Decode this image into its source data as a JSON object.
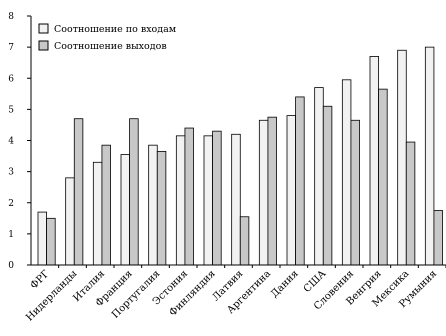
{
  "chart_data": {
    "type": "bar",
    "categories": [
      "ФРГ",
      "Нидерланды",
      "Италия",
      "Франция",
      "Португалия",
      "Эстония",
      "Финляндия",
      "Латвия",
      "Аргентина",
      "Дания",
      "США",
      "Словения",
      "Венгрия",
      "Мексика",
      "Румыния"
    ],
    "series": [
      {
        "name": "Соотношение по входам",
        "values": [
          1.7,
          2.8,
          3.3,
          3.55,
          3.85,
          4.15,
          4.15,
          4.2,
          4.65,
          4.8,
          5.7,
          5.95,
          6.7,
          6.9,
          7.0
        ],
        "color": "#f2f2f2"
      },
      {
        "name": "Соотношение выходов",
        "values": [
          1.5,
          4.7,
          3.85,
          4.7,
          3.65,
          4.4,
          4.3,
          1.55,
          4.75,
          5.4,
          5.1,
          4.65,
          5.65,
          3.95,
          1.75
        ],
        "color": "#c8c8c8"
      }
    ],
    "ylim": [
      0,
      8
    ],
    "yticks": [
      "0",
      "1",
      "2",
      "3",
      "4",
      "5",
      "6",
      "7",
      "8"
    ],
    "grid": false,
    "legend_position": "top-left"
  }
}
